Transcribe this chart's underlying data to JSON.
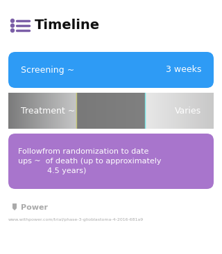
{
  "title": "Timeline",
  "title_icon_color": "#7B5EA7",
  "title_fontsize": 14,
  "bg_color": "#ffffff",
  "cards": [
    {
      "label_left": "Screening ~",
      "label_right": "3 weeks",
      "color": "#2E9BF5",
      "gradient": false,
      "text_color": "#ffffff",
      "text_size": 9,
      "multiline": false,
      "text_lines": [
        "Screening ~",
        "3 weeks"
      ]
    },
    {
      "label_left": "Treatment ~",
      "label_right": "Varies",
      "color": "#7B79E8",
      "color_end": "#C680C8",
      "gradient": true,
      "text_color": "#ffffff",
      "text_size": 9,
      "multiline": false,
      "text_lines": [
        "Treatment ~",
        "Varies"
      ]
    },
    {
      "label_left": "",
      "label_right": "",
      "color": "#A875CC",
      "gradient": false,
      "text_color": "#ffffff",
      "text_size": 8,
      "multiline": true,
      "text_lines": [
        "Followfrom randomization to date",
        "ups ~  of death (up to approximately",
        "            4.5 years)"
      ]
    }
  ],
  "footer_logo_text": "Power",
  "footer_url": "www.withpower.com/trial/phase-3-glioblastoma-4-2016-681a9",
  "footer_color": "#aaaaaa",
  "footer_icon_color": "#aaaaaa"
}
